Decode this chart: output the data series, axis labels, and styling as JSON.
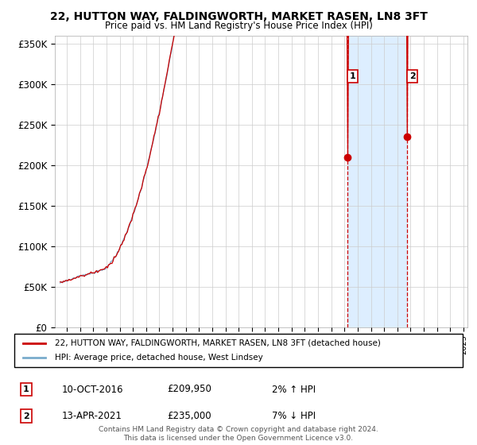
{
  "title": "22, HUTTON WAY, FALDINGWORTH, MARKET RASEN, LN8 3FT",
  "subtitle": "Price paid vs. HM Land Registry's House Price Index (HPI)",
  "ylabel_ticks": [
    "£0",
    "£50K",
    "£100K",
    "£150K",
    "£200K",
    "£250K",
    "£300K",
    "£350K"
  ],
  "ytick_values": [
    0,
    50000,
    100000,
    150000,
    200000,
    250000,
    300000,
    350000
  ],
  "ylim": [
    0,
    360000
  ],
  "legend_line1": "22, HUTTON WAY, FALDINGWORTH, MARKET RASEN, LN8 3FT (detached house)",
  "legend_line2": "HPI: Average price, detached house, West Lindsey",
  "line_color_red": "#cc0000",
  "line_color_blue": "#7aaccc",
  "marker1_price": 209950,
  "marker2_price": 235000,
  "footer": "Contains HM Land Registry data © Crown copyright and database right 2024.\nThis data is licensed under the Open Government Licence v3.0.",
  "bg_color": "#ffffff",
  "plot_bg_color": "#ffffff",
  "grid_color": "#cccccc",
  "vline_color": "#cc0000",
  "shade_color": "#ddeeff",
  "t1": 2016.75,
  "t2": 2021.25,
  "start_year": 1995,
  "end_year": 2025
}
